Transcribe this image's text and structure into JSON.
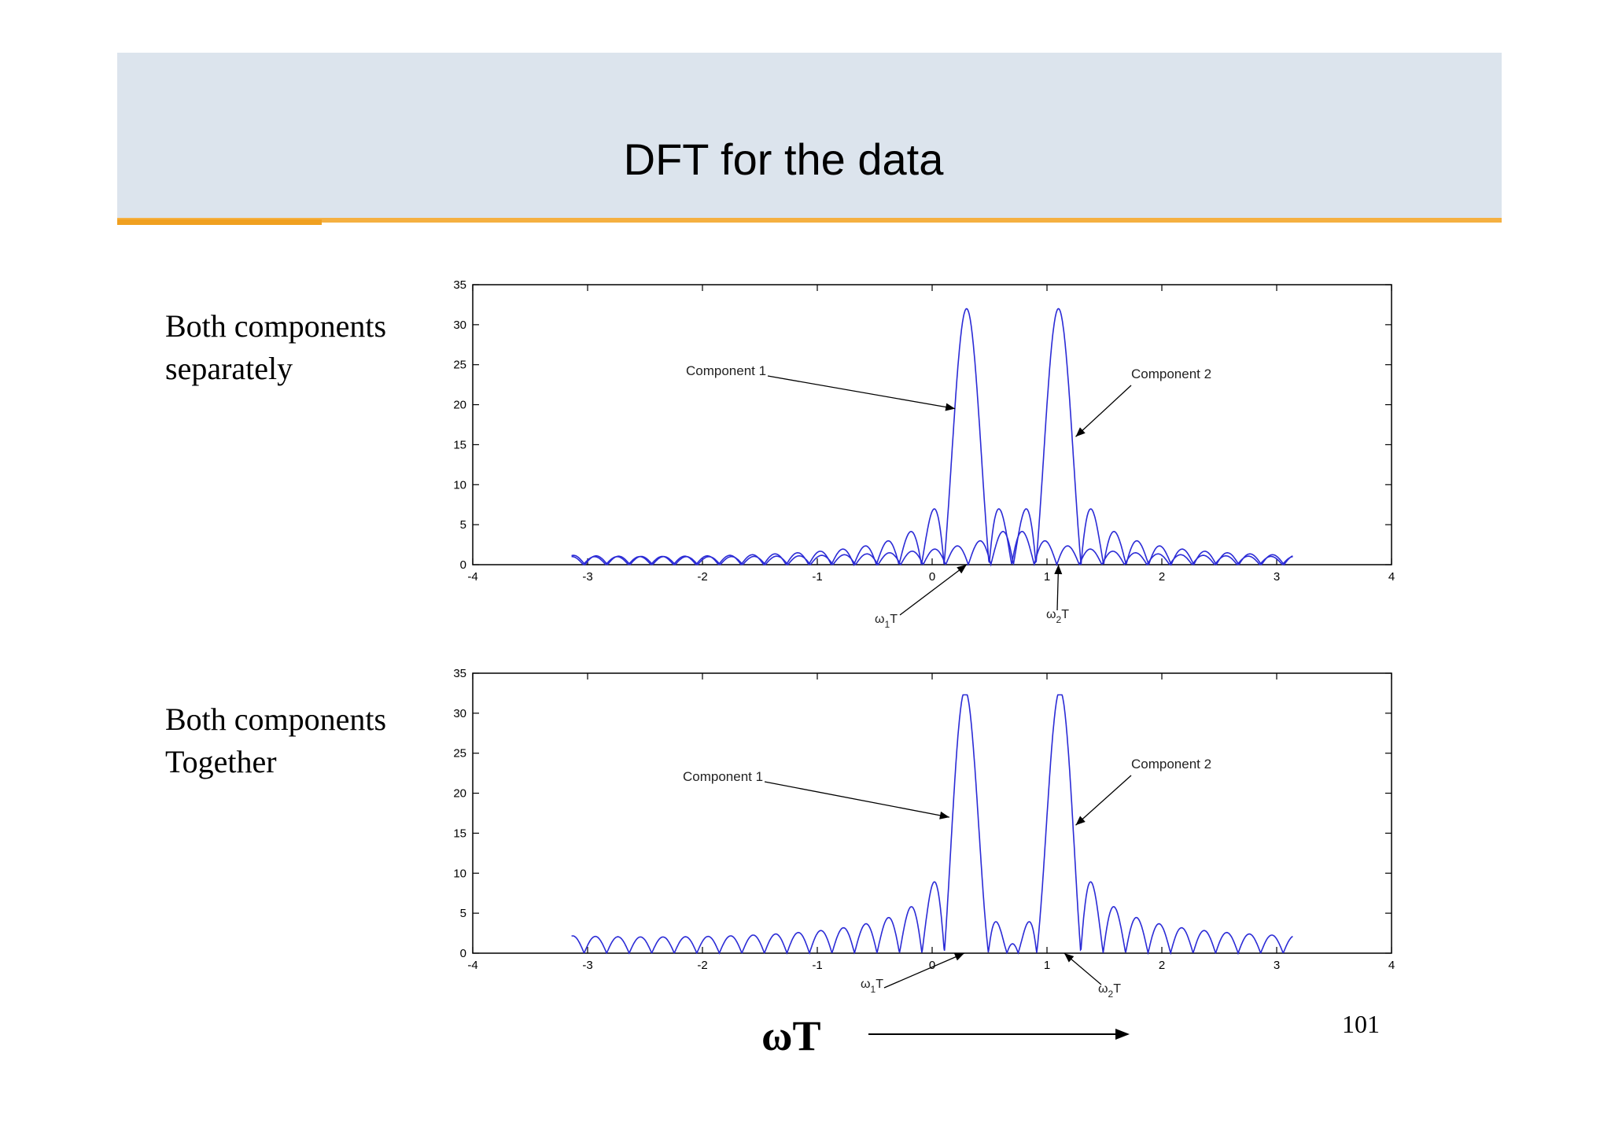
{
  "slide": {
    "title": "DFT for the data",
    "page_number": "101",
    "xaxis_caption": "ωT",
    "top_label": [
      "Both components",
      "separately"
    ],
    "bottom_label": [
      "Both components",
      "Together"
    ]
  },
  "colors": {
    "header_bg": "#dce4ed",
    "header_rule": "#f5b041",
    "line": "#2b2bd6"
  },
  "chart_data": [
    {
      "type": "line",
      "title": "",
      "xlabel": "",
      "ylabel": "",
      "xlim": [
        -4,
        4
      ],
      "ylim": [
        0,
        35
      ],
      "xticks": [
        -4,
        -3,
        -2,
        -1,
        0,
        1,
        2,
        3,
        4
      ],
      "yticks": [
        0,
        5,
        10,
        15,
        20,
        25,
        30,
        35
      ],
      "series": [
        {
          "kind": "sinc-magnitude",
          "peak_x": 0.3,
          "peak_y": 32,
          "N": 32,
          "x_range": [
            -3.14,
            3.14
          ]
        },
        {
          "kind": "sinc-magnitude",
          "peak_x": 1.1,
          "peak_y": 32,
          "N": 32,
          "x_range": [
            -3.14,
            3.14
          ]
        }
      ],
      "annotations": [
        {
          "text": "Component 1",
          "target": [
            0.2,
            19.5
          ]
        },
        {
          "text": "Component 2",
          "target": [
            1.25,
            16
          ]
        },
        {
          "text": "ω1T",
          "target": [
            0.3,
            0
          ]
        },
        {
          "text": "ω2T",
          "target": [
            1.1,
            0
          ]
        }
      ]
    },
    {
      "type": "line",
      "title": "",
      "xlabel": "",
      "ylabel": "",
      "xlim": [
        -4,
        4
      ],
      "ylim": [
        0,
        35
      ],
      "xticks": [
        -4,
        -3,
        -2,
        -1,
        0,
        1,
        2,
        3,
        4
      ],
      "yticks": [
        0,
        5,
        10,
        15,
        20,
        25,
        30,
        35
      ],
      "series": [
        {
          "kind": "combined-magnitude",
          "components": [
            0.3,
            1.1
          ],
          "peak_y": 32,
          "N": 32,
          "x_range": [
            -3.14,
            3.14
          ]
        }
      ],
      "annotations": [
        {
          "text": "Component 1",
          "target": [
            0.15,
            17
          ]
        },
        {
          "text": "Component 2",
          "target": [
            1.25,
            16
          ]
        },
        {
          "text": "ω1T",
          "target": [
            0.28,
            0
          ]
        },
        {
          "text": "ω2T",
          "target": [
            1.15,
            0
          ]
        }
      ]
    }
  ]
}
